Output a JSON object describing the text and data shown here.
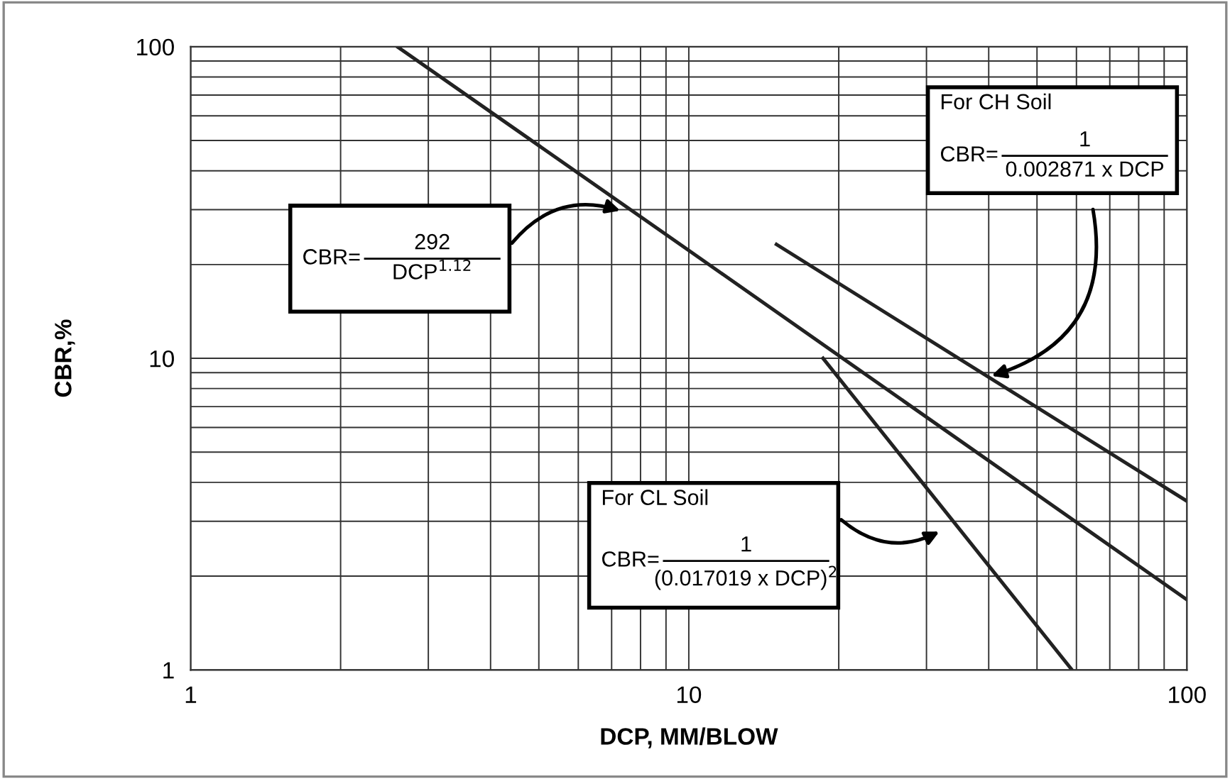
{
  "chart_data": {
    "type": "line",
    "xlabel": "DCP, MM/BLOW",
    "ylabel": "CBR,%",
    "log": "xy",
    "xlim": [
      1,
      100
    ],
    "ylim": [
      1,
      100
    ],
    "xticks": [
      1,
      10,
      100
    ],
    "yticks": [
      1,
      10,
      100
    ],
    "grid": true,
    "legend": false,
    "marker": "none",
    "line_style": "solid",
    "series": [
      {
        "color": "#222222",
        "x": [
          2.6,
          10,
          100
        ],
        "values": [
          100,
          22.2,
          1.68
        ]
      },
      {
        "color": "#222222",
        "x": [
          15,
          100
        ],
        "values": [
          23.2,
          3.48
        ]
      },
      {
        "color": "#222222",
        "x": [
          18.6,
          30,
          58.8
        ],
        "values": [
          10,
          3.84,
          1
        ]
      }
    ],
    "annotations": [
      "CBR=",
      "292",
      "DCP$^{1.12}$",
      "For CH Soil",
      "CBR=",
      "1",
      "0.002871 x DCP",
      "For CL Soil",
      "CBR=",
      "1",
      "(0.017019 x DCP)$^{2}$"
    ]
  }
}
